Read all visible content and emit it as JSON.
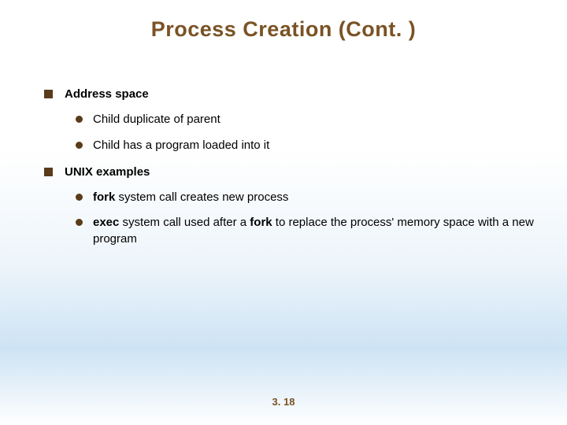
{
  "title": "Process Creation (Cont. )",
  "title_color": "#7a5224",
  "title_fontsize": 27,
  "bullet_square_color": "#5a3b1a",
  "bullet_circle_color": "#5a3b1a",
  "body_fontsize": 15,
  "text_color": "#000000",
  "gradient": {
    "top": "#ffffff",
    "mid1": "#eef5fb",
    "mid2": "#cde3f4",
    "bottom": "#ffffff"
  },
  "items": [
    {
      "text": "Address space",
      "children": [
        {
          "runs": [
            {
              "t": "Child duplicate of parent",
              "b": false
            }
          ]
        },
        {
          "runs": [
            {
              "t": "Child has a program loaded into it",
              "b": false
            }
          ]
        }
      ]
    },
    {
      "text": "UNIX examples",
      "children": [
        {
          "runs": [
            {
              "t": "fork",
              "b": true
            },
            {
              "t": " system call creates new process",
              "b": false
            }
          ]
        },
        {
          "runs": [
            {
              "t": "exec",
              "b": true
            },
            {
              "t": " system call used after a ",
              "b": false
            },
            {
              "t": "fork",
              "b": true
            },
            {
              "t": " to replace the process' memory space with a new program",
              "b": false
            }
          ]
        }
      ]
    }
  ],
  "page_number": "3. 18",
  "pagenum_color": "#7a5224"
}
